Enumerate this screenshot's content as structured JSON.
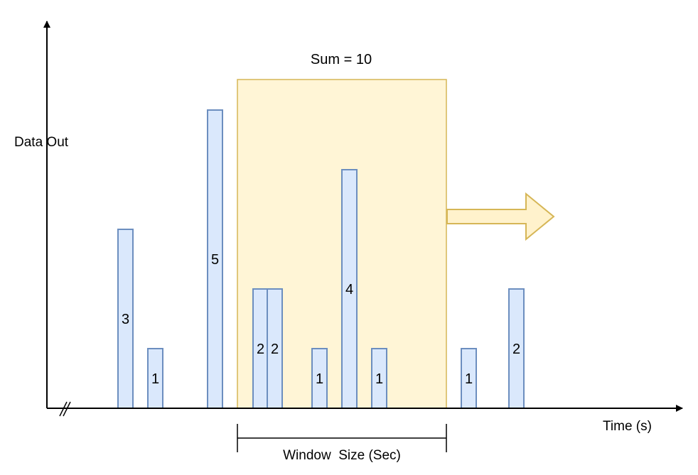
{
  "diagram": {
    "y_axis_label": "Data Out",
    "x_axis_label": "Time (s)",
    "window_label": "Window  Size (Sec)",
    "sum_label": "Sum = 10"
  },
  "colors": {
    "bar_fill": "#dae8fc",
    "bar_stroke": "#6c8ebf",
    "window_fill": "#fff2cc",
    "window_stroke": "#d6b656",
    "axis": "#000000"
  },
  "chart_data": {
    "type": "bar",
    "values": [
      3,
      1,
      5,
      2,
      2,
      1,
      4,
      1,
      1,
      2
    ],
    "labels": [
      "3",
      "1",
      "5",
      "2",
      "2",
      "1",
      "4",
      "1",
      "1",
      "2"
    ],
    "window_values": [
      2,
      2,
      1,
      4,
      1
    ],
    "window_sum": 10
  }
}
